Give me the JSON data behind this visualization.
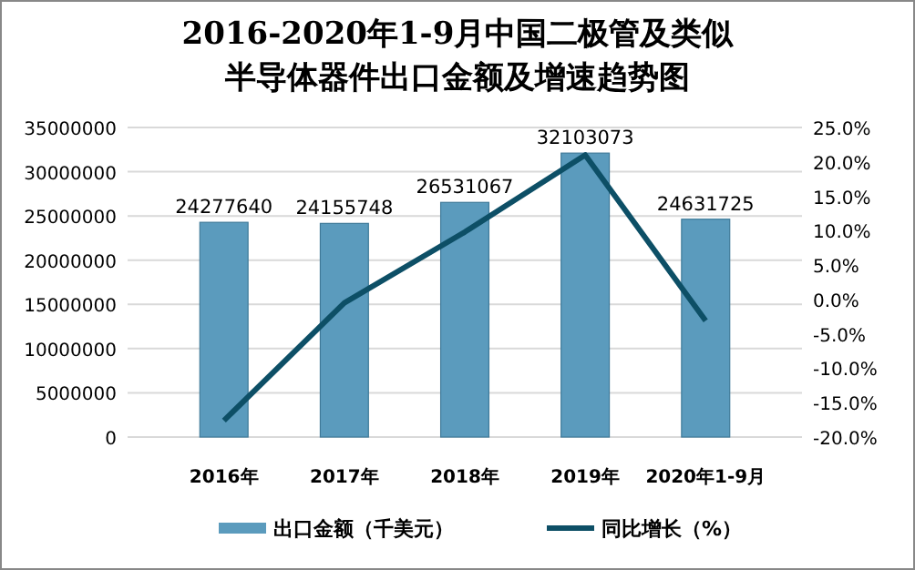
{
  "chart_data": {
    "type": "bar",
    "title": "2016-2020年1-9月中国二极管及类似半导体器件出口金额及增速趋势图",
    "categories": [
      "2016年",
      "2017年",
      "2018年",
      "2019年",
      "2020年1-9月"
    ],
    "series": [
      {
        "name": "出口金额（千美元）",
        "color": "#5b9bbd",
        "values": [
          24277640,
          24155748,
          26531067,
          32103073,
          24631725
        ],
        "value_labels": [
          "24277640",
          "24155748",
          "26531067",
          "32103073",
          "24631725"
        ]
      },
      {
        "name": "同比增长（%）",
        "type": "line",
        "axis": "y2",
        "color": "#0d4f66",
        "values": [
          -17.6,
          -0.5,
          9.8,
          21.0,
          -3.1
        ]
      }
    ],
    "ylim": [
      0,
      35000000
    ],
    "yticks": [
      0,
      5000000,
      10000000,
      15000000,
      20000000,
      25000000,
      30000000,
      35000000
    ],
    "y2lim": [
      -20,
      25
    ],
    "y2ticks": [
      {
        "value": -20,
        "label": "-20.0%"
      },
      {
        "value": -15,
        "label": "-15.0%"
      },
      {
        "value": -10,
        "label": "-10.0%"
      },
      {
        "value": -5,
        "label": "-5.0%"
      },
      {
        "value": 0,
        "label": "0.0%"
      },
      {
        "value": 5,
        "label": "5.0%"
      },
      {
        "value": 10,
        "label": "10.0%"
      },
      {
        "value": 15,
        "label": "15.0%"
      },
      {
        "value": 20,
        "label": "20.0%"
      },
      {
        "value": 25,
        "label": "25.0%"
      }
    ],
    "grid": "y",
    "legend": "bottom",
    "marker": "none"
  }
}
